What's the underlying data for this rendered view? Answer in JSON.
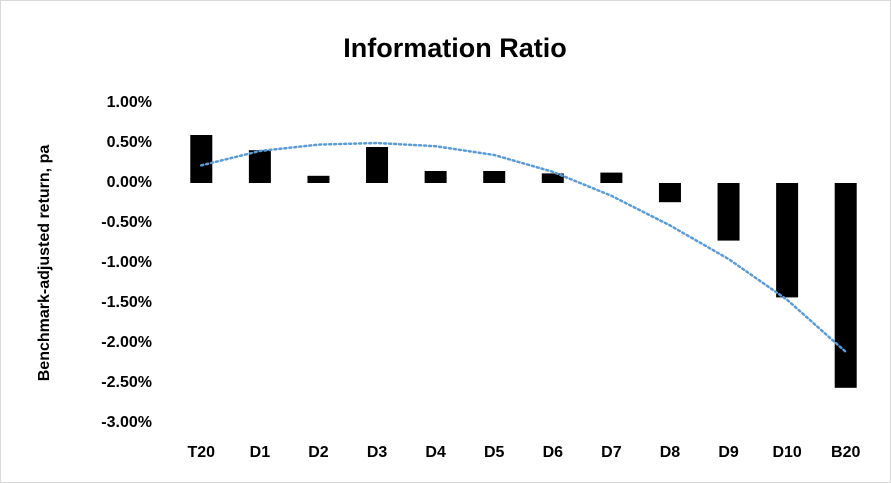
{
  "chart_data": {
    "type": "bar",
    "title": "Information Ratio",
    "y_label": "Benchmark-adjusted return, pa",
    "categories": [
      "T20",
      "D1",
      "D2",
      "D3",
      "D4",
      "D5",
      "D6",
      "D7",
      "D8",
      "D9",
      "D10",
      "B20"
    ],
    "series": [
      {
        "type": "bar",
        "color": "#000000",
        "values": [
          0.6,
          0.41,
          0.09,
          0.45,
          0.15,
          0.15,
          0.12,
          0.13,
          -0.24,
          -0.72,
          -1.43,
          -2.56
        ]
      },
      {
        "type": "line",
        "style": "dotted",
        "color": "#5b9bd5",
        "values": [
          0.22,
          0.4,
          0.48,
          0.5,
          0.46,
          0.35,
          0.14,
          -0.16,
          -0.53,
          -0.95,
          -1.46,
          -2.11
        ]
      }
    ],
    "ylim": [
      -3,
      1
    ],
    "yticks": [
      {
        "value": 1,
        "label": "1.00%"
      },
      {
        "value": 0.5,
        "label": "0.50%"
      },
      {
        "value": 0,
        "label": "0.00%"
      },
      {
        "value": -0.5,
        "label": "-0.50%"
      },
      {
        "value": -1,
        "label": "-1.00%"
      },
      {
        "value": -1.5,
        "label": "-1.50%"
      },
      {
        "value": -2,
        "label": "-2.00%"
      },
      {
        "value": -2.5,
        "label": "-2.50%"
      },
      {
        "value": -3,
        "label": "-3.00%"
      }
    ],
    "grid": false
  }
}
